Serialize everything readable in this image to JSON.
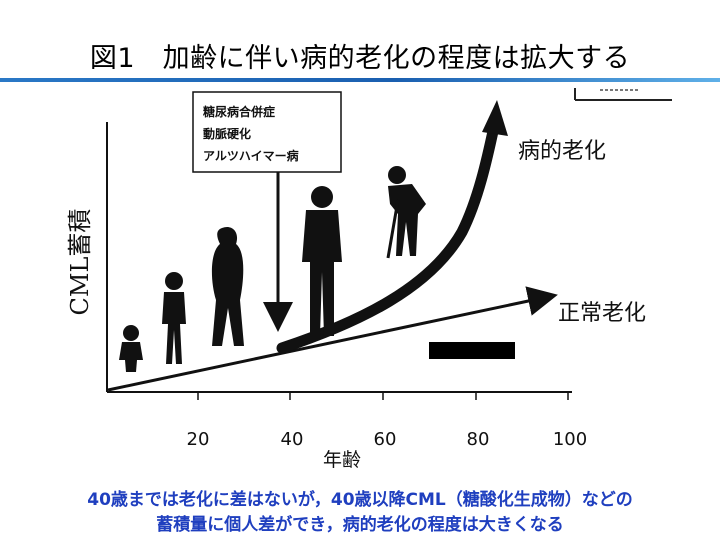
{
  "slide": {
    "title": "図1　加齢に伴い病的老化の程度は拡大する",
    "caption_line1": "40歳までは老化に差はないが，40歳以降CML（糖酸化生成物）などの",
    "caption_line2": "蓄積量に個人差ができ，病的老化の程度は大きくなる"
  },
  "diagram": {
    "y_axis_label": "CML蓄積",
    "x_axis_label": "年齢",
    "x_ticks": [
      "20",
      "40",
      "60",
      "80",
      "100"
    ],
    "disease_box_lines": [
      "糖尿病合併症",
      "動脈硬化",
      "アルツハイマー病"
    ],
    "curve_labels": {
      "pathological": "病的老化",
      "normal": "正常老化"
    }
  },
  "colors": {
    "title_rule": "#1a5fb0",
    "caption_text": "#1f3fbf"
  }
}
